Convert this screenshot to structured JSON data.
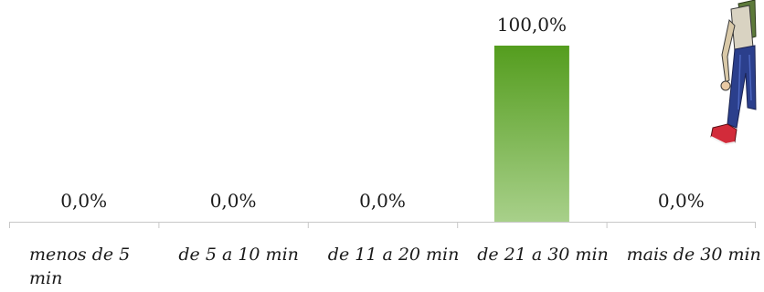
{
  "chart_data": {
    "type": "bar",
    "categories": [
      "menos de 5 min",
      "de 5 a 10 min",
      "de 11 a 20 min",
      "de 21 a 30 min",
      "mais de 30 min"
    ],
    "values": [
      0.0,
      0.0,
      0.0,
      100.0,
      0.0
    ],
    "data_labels": [
      "0,0%",
      "0,0%",
      "0,0%",
      "100,0%",
      "0,0%"
    ],
    "ylim": [
      0,
      100
    ],
    "grid": false,
    "legend": "none",
    "colors": {
      "bar_top": "#549d1e",
      "bar_bottom": "#a8d08a",
      "axis": "#c8c8c8"
    },
    "decoration": "walking-person-illustration"
  }
}
